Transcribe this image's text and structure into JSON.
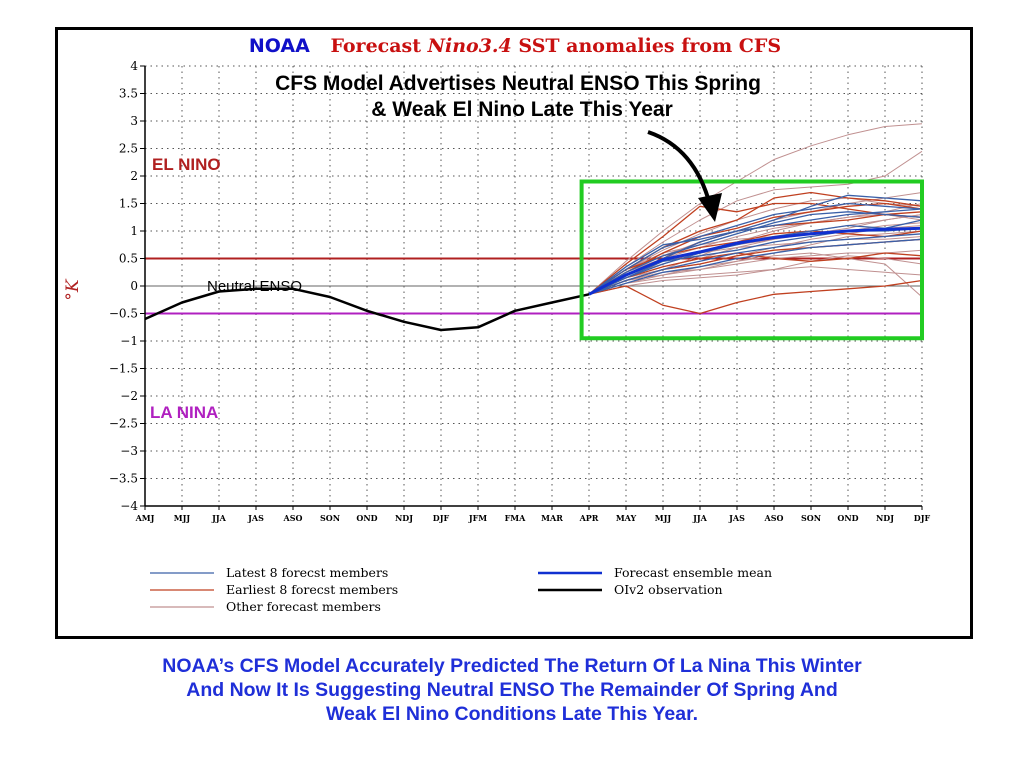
{
  "header": {
    "brand": "NOAA",
    "title_prefix": "Forecast ",
    "title_italic": "Nino3.4",
    "title_suffix": " SST anomalies from CFS",
    "brand_color": "#1010c8",
    "title_color": "#c81010"
  },
  "annotation": {
    "line1": "CFS Model Advertises Neutral ENSO This Spring",
    "line2": "& Weak El Nino Late This Year"
  },
  "regions": {
    "el_nino": "EL NINO",
    "la_nina": "LA NINA",
    "neutral": "Neutral ENSO"
  },
  "caption": {
    "line1": "NOAA’s CFS Model Accurately Predicted The Return Of La Nina This Winter",
    "line2": "And Now It Is Suggesting Neutral ENSO The Remainder Of Spring And",
    "line3": "Weak El Nino Conditions Late This Year."
  },
  "chart_data": {
    "type": "line",
    "ylabel": "°K",
    "ylim": [
      -4,
      4
    ],
    "yticks": [
      -4,
      -3.5,
      -3,
      -2.5,
      -2,
      -1.5,
      -1,
      -0.5,
      0,
      0.5,
      1,
      1.5,
      2,
      2.5,
      3,
      3.5,
      4
    ],
    "ytick_labels": [
      "−4",
      "−3.5",
      "−3",
      "−2.5",
      "−2",
      "−1.5",
      "−1",
      "−0.5",
      "0",
      "0.5",
      "1",
      "1.5",
      "2",
      "2.5",
      "3",
      "3.5",
      "4"
    ],
    "categories": [
      "AMJ",
      "MJJ",
      "JJA",
      "JAS",
      "ASO",
      "SON",
      "OND",
      "NDJ",
      "DJF",
      "JFM",
      "FMA",
      "MAR",
      "APR",
      "MAY",
      "MJJ",
      "JJA",
      "JAS",
      "ASO",
      "SON",
      "OND",
      "NDJ",
      "DJF"
    ],
    "grid": true,
    "thresholds": [
      {
        "name": "el_nino",
        "value": 0.5,
        "color": "#b02020"
      },
      {
        "name": "la_nina",
        "value": -0.5,
        "color": "#b020c0"
      }
    ],
    "observation": {
      "x": [
        0,
        1,
        2,
        3,
        4,
        5,
        6,
        7,
        8,
        9,
        10,
        11,
        12
      ],
      "values": [
        -0.6,
        -0.3,
        -0.1,
        -0.05,
        -0.05,
        -0.2,
        -0.45,
        -0.65,
        -0.8,
        -0.75,
        -0.45,
        -0.3,
        -0.15
      ]
    },
    "forecast_start": 12,
    "forecast_x": [
      12,
      13,
      14,
      15,
      16,
      17,
      18,
      19,
      20,
      21
    ],
    "ensemble_mean": [
      -0.15,
      0.2,
      0.48,
      0.62,
      0.78,
      0.88,
      0.95,
      1.0,
      1.03,
      1.05
    ],
    "latest_members": [
      [
        -0.15,
        0.3,
        0.7,
        0.9,
        1.1,
        1.3,
        1.4,
        1.5,
        1.45,
        1.4
      ],
      [
        -0.15,
        0.15,
        0.4,
        0.6,
        0.75,
        0.9,
        1.0,
        1.1,
        1.05,
        1.2
      ],
      [
        -0.15,
        0.25,
        0.55,
        0.75,
        0.95,
        1.15,
        1.3,
        1.35,
        1.3,
        1.25
      ],
      [
        -0.15,
        0.1,
        0.3,
        0.45,
        0.6,
        0.7,
        0.8,
        0.85,
        0.9,
        0.95
      ],
      [
        -0.15,
        0.2,
        0.5,
        0.8,
        1.0,
        1.1,
        1.2,
        1.3,
        1.35,
        1.4
      ],
      [
        -0.15,
        0.05,
        0.25,
        0.35,
        0.5,
        0.6,
        0.7,
        0.75,
        0.8,
        0.85
      ],
      [
        -0.15,
        0.35,
        0.75,
        0.85,
        1.0,
        1.2,
        1.45,
        1.65,
        1.6,
        1.55
      ],
      [
        -0.15,
        0.15,
        0.45,
        0.55,
        0.65,
        0.8,
        0.9,
        1.0,
        1.0,
        1.05
      ]
    ],
    "earliest_members": [
      [
        -0.15,
        0.4,
        0.9,
        1.45,
        1.35,
        1.5,
        1.5,
        1.4,
        1.3,
        1.25
      ],
      [
        -0.15,
        0.3,
        0.7,
        1.0,
        1.2,
        1.6,
        1.7,
        1.6,
        1.55,
        1.45
      ],
      [
        -0.15,
        0.0,
        -0.35,
        -0.5,
        -0.3,
        -0.15,
        -0.1,
        -0.05,
        0.0,
        0.1
      ],
      [
        -0.15,
        0.2,
        0.5,
        0.8,
        1.0,
        1.1,
        1.15,
        1.2,
        1.3,
        1.35
      ],
      [
        -0.15,
        0.1,
        0.3,
        0.4,
        0.55,
        0.65,
        0.7,
        0.75,
        0.8,
        0.85
      ],
      [
        -0.15,
        0.25,
        0.6,
        0.9,
        1.05,
        1.25,
        1.35,
        1.45,
        1.5,
        1.4
      ],
      [
        -0.15,
        0.15,
        0.35,
        0.5,
        0.6,
        0.5,
        0.45,
        0.5,
        0.6,
        0.55
      ],
      [
        -0.15,
        0.3,
        0.55,
        0.7,
        0.8,
        0.95,
        1.0,
        0.95,
        0.9,
        1.0
      ]
    ],
    "other_members": [
      [
        -0.15,
        0.45,
        1.0,
        1.5,
        1.9,
        2.3,
        2.55,
        2.75,
        2.9,
        2.95
      ],
      [
        -0.15,
        0.35,
        0.8,
        1.2,
        1.55,
        1.75,
        1.8,
        1.85,
        2.0,
        2.45
      ],
      [
        -0.15,
        0.2,
        0.45,
        0.6,
        0.75,
        0.85,
        0.95,
        1.0,
        1.1,
        1.15
      ],
      [
        -0.15,
        0.1,
        0.25,
        0.3,
        0.4,
        0.5,
        0.55,
        0.6,
        0.6,
        0.65
      ],
      [
        -0.15,
        0.05,
        0.15,
        0.2,
        0.25,
        0.3,
        0.35,
        0.3,
        0.25,
        0.2
      ],
      [
        -0.15,
        0.15,
        0.35,
        0.5,
        0.7,
        0.85,
        1.0,
        1.1,
        1.2,
        1.3
      ],
      [
        -0.15,
        0.25,
        0.55,
        0.8,
        1.0,
        1.2,
        1.35,
        1.5,
        1.6,
        1.7
      ],
      [
        -0.15,
        0.0,
        0.1,
        0.15,
        0.2,
        0.3,
        0.45,
        0.55,
        0.5,
        0.4
      ],
      [
        -0.15,
        0.3,
        0.65,
        0.95,
        1.2,
        1.4,
        1.55,
        1.6,
        1.5,
        1.45
      ],
      [
        -0.15,
        0.1,
        0.3,
        0.55,
        0.8,
        1.0,
        1.15,
        1.25,
        1.3,
        1.2
      ],
      [
        -0.15,
        0.2,
        0.4,
        0.6,
        0.7,
        0.75,
        0.8,
        0.85,
        0.85,
        0.9
      ],
      [
        -0.15,
        0.05,
        0.2,
        0.35,
        0.45,
        0.55,
        0.6,
        0.5,
        0.4,
        -0.2
      ],
      [
        -0.15,
        0.25,
        0.5,
        0.7,
        0.9,
        1.05,
        1.15,
        1.25,
        1.35,
        1.5
      ],
      [
        -0.15,
        0.15,
        0.3,
        0.4,
        0.55,
        0.7,
        0.85,
        0.95,
        1.05,
        1.1
      ],
      [
        -0.15,
        0.3,
        0.6,
        0.75,
        0.85,
        0.9,
        0.95,
        1.05,
        1.2,
        1.3
      ],
      [
        -0.15,
        0.1,
        0.2,
        0.3,
        0.45,
        0.6,
        0.75,
        0.9,
        0.95,
        1.0
      ]
    ],
    "highlight_box": {
      "x0": 11.8,
      "x1": 21.0,
      "y0": -0.95,
      "y1": 1.9,
      "color": "#22cc22"
    },
    "legend": {
      "placement": "bottom",
      "entries": [
        {
          "label": "Latest 8 forecst members",
          "color": "#3a60a8"
        },
        {
          "label": "Earliest 8 forecst members",
          "color": "#c04020"
        },
        {
          "label": "Other forecast members",
          "color": "#c09090"
        },
        {
          "label": "Forecast ensemble mean",
          "color": "#1030d0"
        },
        {
          "label": "OIv2 observation",
          "color": "#000000"
        }
      ]
    }
  }
}
